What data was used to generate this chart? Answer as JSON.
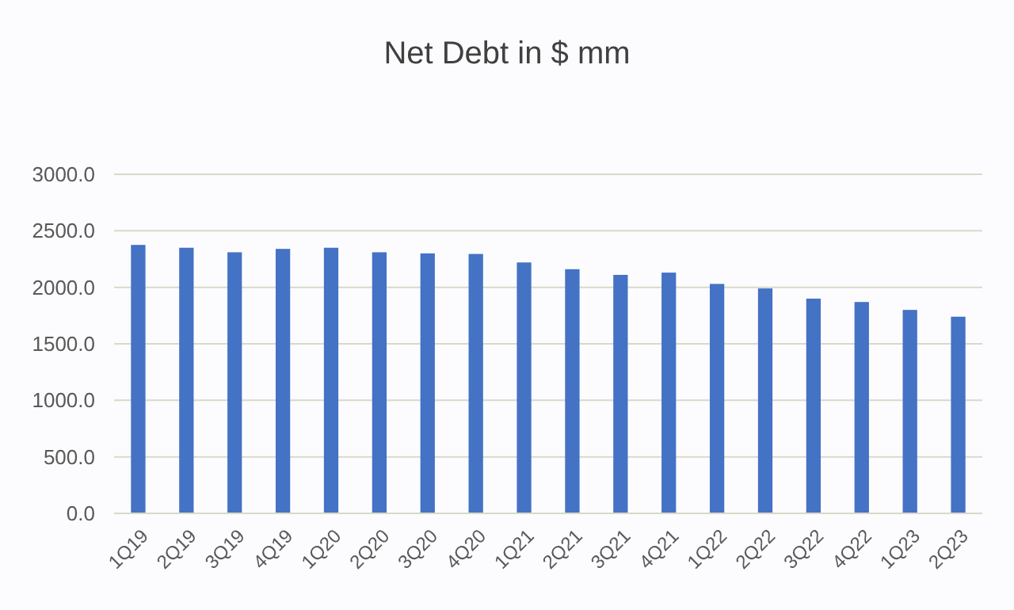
{
  "chart_data": {
    "type": "bar",
    "title": "Net Debt in $ mm",
    "categories": [
      "1Q19",
      "2Q19",
      "3Q19",
      "4Q19",
      "1Q20",
      "2Q20",
      "3Q20",
      "4Q20",
      "1Q21",
      "2Q21",
      "3Q21",
      "4Q21",
      "1Q22",
      "2Q22",
      "3Q22",
      "4Q22",
      "1Q23",
      "2Q23"
    ],
    "values": [
      2375,
      2350,
      2310,
      2340,
      2350,
      2310,
      2300,
      2295,
      2220,
      2160,
      2110,
      2130,
      2030,
      1990,
      1900,
      1870,
      1800,
      1740
    ],
    "color": "#4472c4",
    "ylim": [
      0,
      3000
    ],
    "yticks": [
      {
        "value": 0,
        "label": "0.0"
      },
      {
        "value": 500,
        "label": "500.0"
      },
      {
        "value": 1000,
        "label": "1000.0"
      },
      {
        "value": 1500,
        "label": "1500.0"
      },
      {
        "value": 2000,
        "label": "2000.0"
      },
      {
        "value": 2500,
        "label": "2500.0"
      },
      {
        "value": 3000,
        "label": "3000.0"
      }
    ],
    "grid": true
  }
}
